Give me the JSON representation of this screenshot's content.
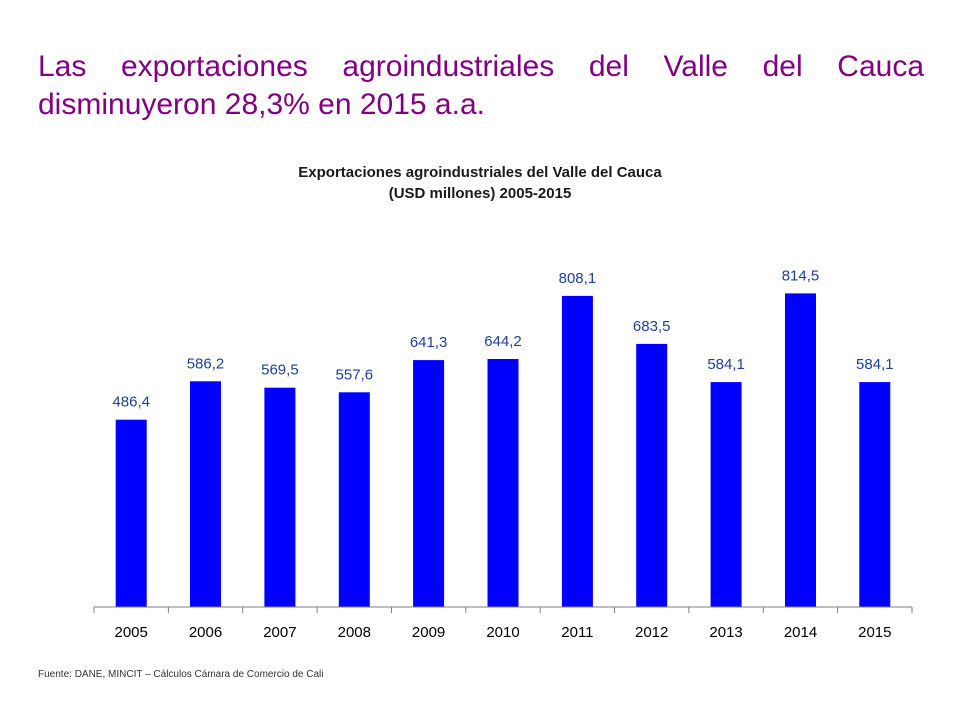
{
  "headline": "Las exportaciones agroindustriales del Valle del Cauca disminuyeron 28,3% en 2015 a.a.",
  "footnote": "Fuente: DANE, MINCIT – Cálculos Cámara de Comercio de Cali",
  "colors": {
    "headline": "#800080",
    "bar": "#0000ff",
    "value_label": "#1f3f99",
    "axis": "#7f7f7f"
  },
  "chart_data": {
    "type": "bar",
    "title_lines": [
      "Exportaciones agroindustriales del Valle del Cauca",
      "(USD millones) 2005-2015"
    ],
    "categories": [
      "2005",
      "2006",
      "2007",
      "2008",
      "2009",
      "2010",
      "2011",
      "2012",
      "2013",
      "2014",
      "2015"
    ],
    "values": [
      486.4,
      586.2,
      569.5,
      557.6,
      641.3,
      644.2,
      808.1,
      683.5,
      584.1,
      814.5,
      584.1
    ],
    "value_labels": [
      "486,4",
      "586,2",
      "569,5",
      "557,6",
      "641,3",
      "644,2",
      "808,1",
      "683,5",
      "584,1",
      "814,5",
      "584,1"
    ],
    "xlabel": "",
    "ylabel": "",
    "ylim": [
      0,
      1000
    ],
    "grid": false,
    "legend": "none"
  }
}
